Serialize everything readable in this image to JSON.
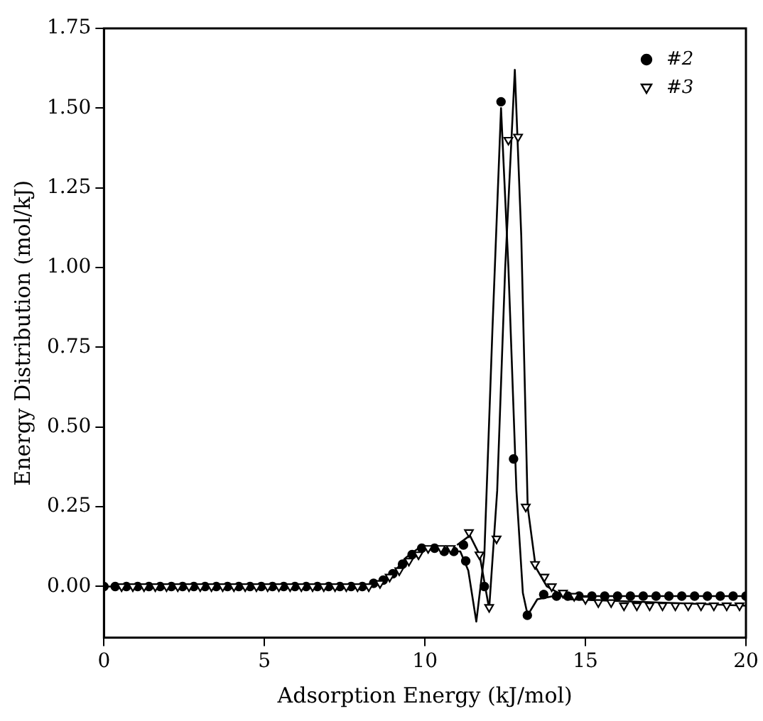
{
  "chart_data": {
    "type": "scatter",
    "xlabel": "Adsorption Energy (kJ/mol)",
    "ylabel": "Energy Distribution (mol/kJ)",
    "xlim": [
      0,
      20
    ],
    "xticks": [
      0,
      5,
      10,
      15,
      20
    ],
    "ylim": [
      -0.16,
      1.75
    ],
    "yticks": [
      {
        "value": 0,
        "label": "0.00"
      },
      {
        "value": 0.25,
        "label": "0.25"
      },
      {
        "value": 0.5,
        "label": "0.50"
      },
      {
        "value": 0.75,
        "label": "0.75"
      },
      {
        "value": 1,
        "label": "1.00"
      },
      {
        "value": 1.25,
        "label": "1.25"
      },
      {
        "value": 1.5,
        "label": "1.50"
      },
      {
        "value": 1.75,
        "label": "1.75"
      }
    ],
    "grid": false,
    "legend": "top right",
    "series": [
      {
        "name": "#2",
        "marker": "circle",
        "color": "#000000",
        "x": [
          0,
          0.35,
          0.7,
          1.05,
          1.4,
          1.75,
          2.1,
          2.45,
          2.8,
          3.15,
          3.5,
          3.85,
          4.2,
          4.55,
          4.9,
          5.25,
          5.6,
          5.95,
          6.3,
          6.65,
          7.0,
          7.35,
          7.7,
          8.05,
          8.4,
          8.7,
          9.0,
          9.3,
          9.6,
          9.9,
          10.3,
          10.6,
          10.9,
          11.2,
          11.27,
          11.85,
          12.37,
          12.76,
          13.19,
          13.7,
          14.1,
          14.45,
          14.8,
          15.2,
          15.6,
          16.0,
          16.4,
          16.8,
          17.2,
          17.6,
          18.0,
          18.4,
          18.8,
          19.2,
          19.6,
          20.0
        ],
        "values": [
          0,
          0,
          0,
          0,
          0,
          0,
          0,
          0,
          0,
          0,
          0,
          0,
          0,
          0,
          0,
          0,
          0,
          0,
          0,
          0,
          0,
          0,
          0,
          0,
          0.01,
          0.02,
          0.04,
          0.07,
          0.1,
          0.12,
          0.12,
          0.11,
          0.11,
          0.13,
          0.08,
          0.0,
          1.52,
          0.4,
          -0.09,
          -0.025,
          -0.03,
          -0.03,
          -0.03,
          -0.03,
          -0.03,
          -0.03,
          -0.03,
          -0.03,
          -0.03,
          -0.03,
          -0.03,
          -0.03,
          -0.03,
          -0.03,
          -0.03,
          -0.03
        ]
      },
      {
        "name": "#3",
        "marker": "triangle",
        "color": "#000000",
        "x": [
          0.55,
          0.9,
          1.25,
          1.6,
          1.95,
          2.3,
          2.65,
          3.0,
          3.35,
          3.7,
          4.05,
          4.4,
          4.75,
          5.1,
          5.45,
          5.8,
          6.15,
          6.5,
          6.85,
          7.2,
          7.55,
          7.9,
          8.25,
          8.6,
          8.9,
          9.2,
          9.5,
          9.8,
          10.1,
          10.5,
          10.8,
          11.37,
          11.7,
          12.0,
          12.23,
          12.6,
          12.9,
          13.14,
          13.43,
          13.72,
          13.95,
          14.3,
          14.65,
          15.0,
          15.4,
          15.8,
          16.2,
          16.6,
          17.0,
          17.4,
          17.8,
          18.2,
          18.6,
          19.0,
          19.4,
          19.8
        ],
        "values": [
          0,
          0,
          0,
          0,
          0,
          0,
          0,
          0,
          0,
          0,
          0,
          0,
          0,
          0,
          0,
          0,
          0,
          0,
          0,
          0,
          0,
          0,
          0,
          0.01,
          0.03,
          0.05,
          0.08,
          0.1,
          0.12,
          0.12,
          0.12,
          0.17,
          0.1,
          -0.065,
          0.15,
          1.4,
          1.41,
          0.25,
          0.07,
          0.03,
          0.0,
          -0.02,
          -0.03,
          -0.04,
          -0.05,
          -0.05,
          -0.06,
          -0.06,
          -0.06,
          -0.06,
          -0.06,
          -0.06,
          -0.06,
          -0.06,
          -0.06,
          -0.06
        ]
      },
      {
        "type": "line",
        "marker": "none",
        "line_style": "solid",
        "color": "#000000",
        "x": [
          0,
          8,
          8.6,
          9.0,
          9.4,
          9.8,
          10.3,
          10.8,
          11.1,
          11.35,
          11.6,
          11.85,
          12.1,
          12.37,
          12.6,
          12.85,
          13.05,
          13.2,
          13.5,
          14,
          15,
          20
        ],
        "values": [
          0,
          0,
          0.01,
          0.04,
          0.09,
          0.12,
          0.12,
          0.11,
          0.11,
          0.05,
          -0.11,
          0.1,
          0.8,
          1.5,
          1.0,
          0.3,
          -0.02,
          -0.09,
          -0.04,
          -0.03,
          -0.03,
          -0.03
        ]
      },
      {
        "type": "line",
        "marker": "none",
        "line_style": "solid",
        "color": "#000000",
        "x": [
          11.0,
          11.4,
          11.7,
          12.0,
          12.25,
          12.5,
          12.8,
          13.0,
          13.2,
          13.45,
          13.8,
          14.5,
          20
        ],
        "values": [
          0.13,
          0.16,
          0.1,
          -0.07,
          0.3,
          1.0,
          1.62,
          1.1,
          0.25,
          0.06,
          0.0,
          -0.04,
          -0.06
        ]
      }
    ]
  }
}
